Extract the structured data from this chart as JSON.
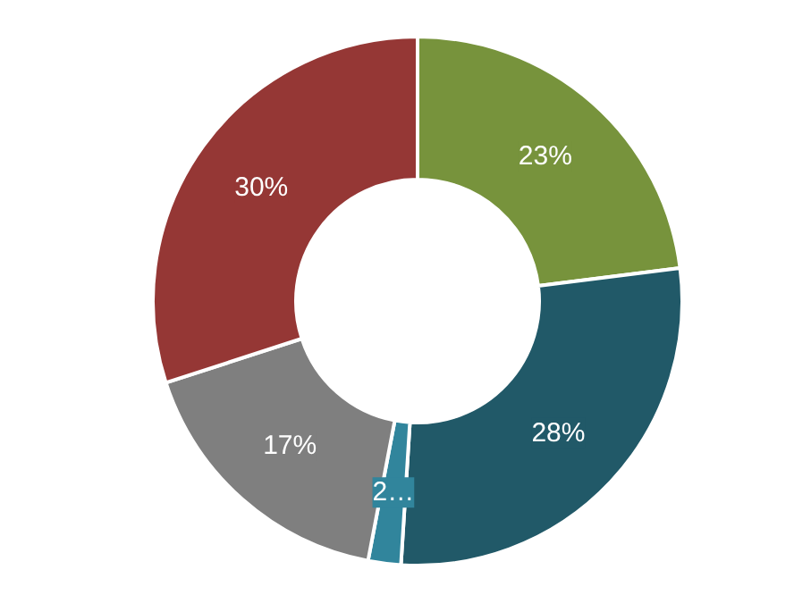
{
  "chart_data": {
    "type": "donut",
    "categories": [
      null,
      null,
      null,
      null,
      null
    ],
    "values": [
      23,
      28,
      2,
      17,
      30
    ],
    "colors": [
      "#77933c",
      "#215968",
      "#31859c",
      "#7f7f7f",
      "#953735"
    ],
    "value_labels": [
      "23%",
      "28%",
      "2…",
      "17%",
      "30%"
    ]
  }
}
